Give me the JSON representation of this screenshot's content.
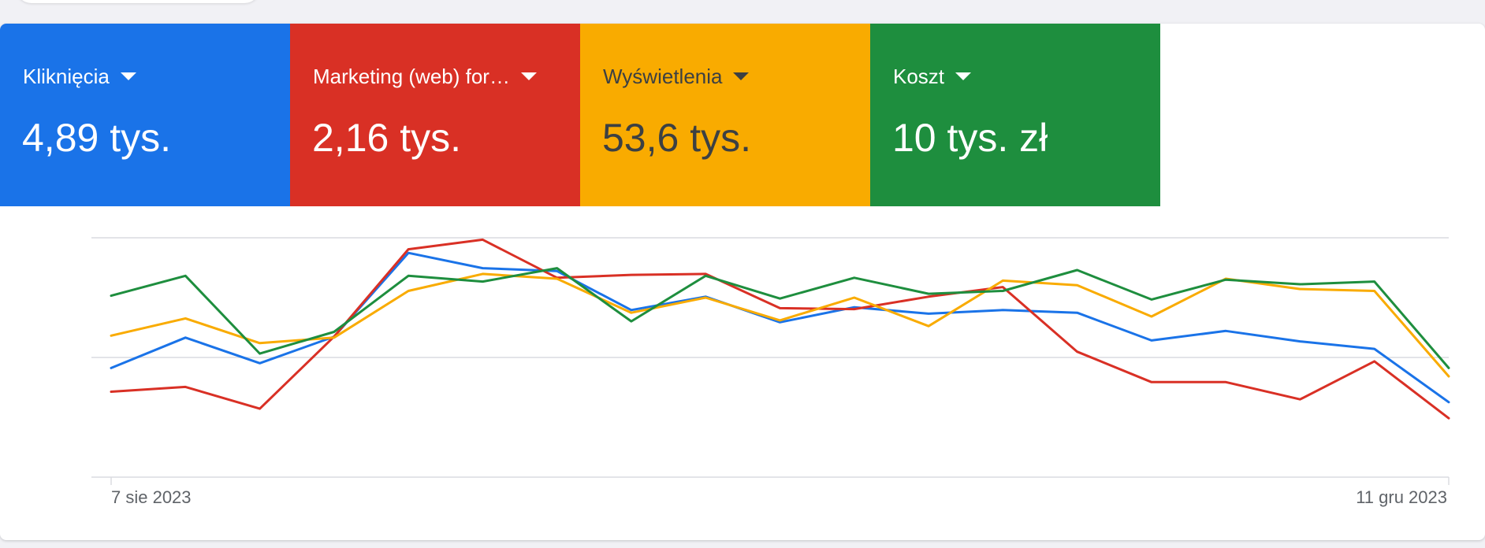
{
  "metrics": [
    {
      "label": "Kliknięcia",
      "value": "4,89 tys.",
      "color": "#1a73e8"
    },
    {
      "label": "Marketing (web) for…",
      "value": "2,16 tys.",
      "color": "#d93025"
    },
    {
      "label": "Wyświetlenia",
      "value": "53,6 tys.",
      "color": "#f9ab00"
    },
    {
      "label": "Koszt",
      "value": "10 tys. zł",
      "color": "#1e8e3e"
    }
  ],
  "chart_data": {
    "type": "line",
    "x_tick_labels": [
      "7 sie 2023",
      "11 gru 2023"
    ],
    "grid": "horizontal",
    "y_axis_labels_shown": false,
    "note_values": "relative heights read from the plot (0 = bottom gridline, 100 = top gridline); no y-axis values are printed",
    "x": [
      0,
      1,
      2,
      3,
      4,
      5,
      6,
      7,
      8,
      9,
      10,
      11,
      12,
      13,
      14,
      15,
      16,
      17,
      18
    ],
    "ylim": [
      0,
      100
    ],
    "series": [
      {
        "color": "#1a73e8",
        "values": [
          45.6,
          58.3,
          47.6,
          58.7,
          93.7,
          87.3,
          86.1,
          69.8,
          75.4,
          64.7,
          71.0,
          68.3,
          69.8,
          68.7,
          57.1,
          61.1,
          56.7,
          53.6,
          31.3
        ]
      },
      {
        "color": "#d93025",
        "values": [
          35.7,
          37.7,
          28.6,
          58.7,
          95.2,
          99.2,
          83.3,
          84.5,
          84.9,
          70.6,
          70.2,
          75.4,
          79.4,
          52.4,
          39.7,
          39.7,
          32.5,
          48.4,
          24.6
        ]
      },
      {
        "color": "#f9ab00",
        "values": [
          59.1,
          66.3,
          56.0,
          58.3,
          77.8,
          84.9,
          82.9,
          68.7,
          75.0,
          65.5,
          75.0,
          63.1,
          82.1,
          80.2,
          67.1,
          82.9,
          78.6,
          77.8,
          42.1
        ]
      },
      {
        "color": "#1e8e3e",
        "values": [
          75.8,
          84.1,
          51.6,
          60.7,
          84.1,
          81.7,
          87.3,
          65.1,
          84.1,
          74.6,
          83.3,
          76.6,
          77.8,
          86.5,
          74.2,
          82.5,
          80.6,
          81.7,
          45.6
        ]
      }
    ]
  }
}
